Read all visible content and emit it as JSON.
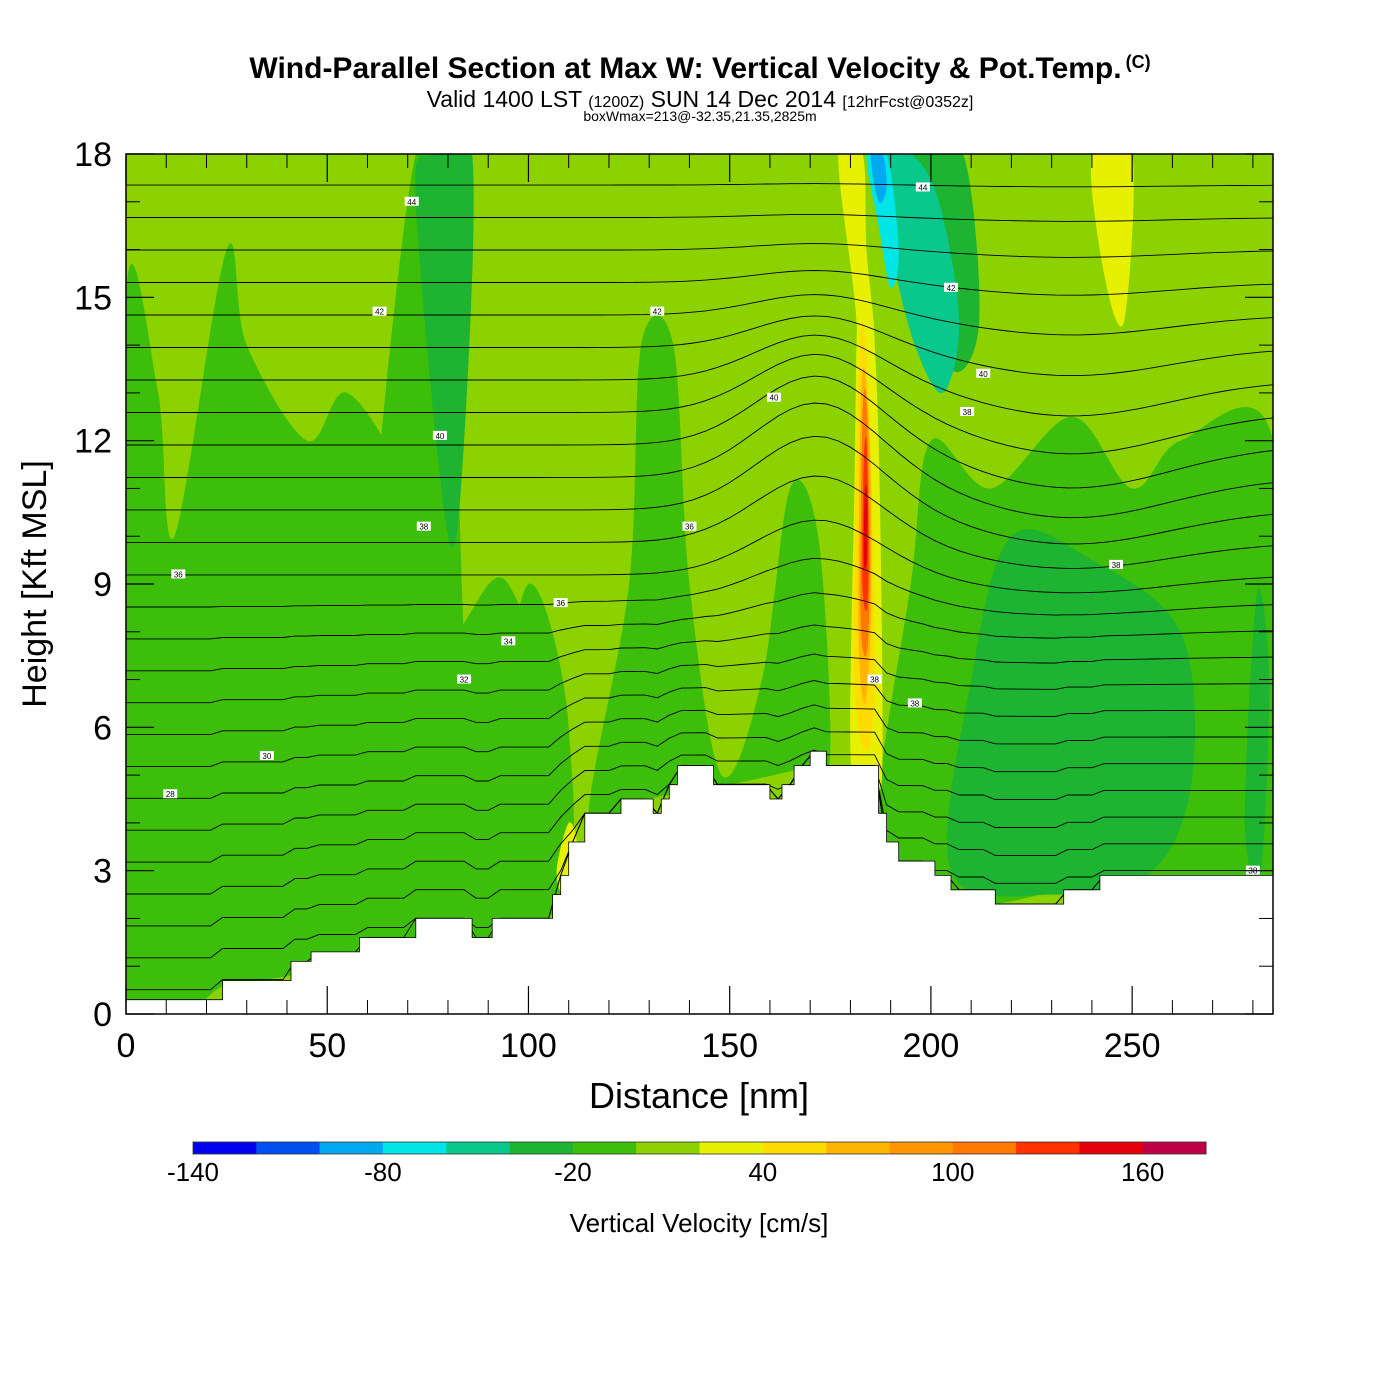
{
  "header": {
    "title": "Wind-Parallel Section at Max W: Vertical Velocity & Pot.Temp.",
    "copyright": "(C)",
    "subtitle_main": "Valid 1400 LST",
    "subtitle_utc": "(1200Z)",
    "subtitle_date": "SUN 14 Dec 2014",
    "subtitle_fcst": "[12hrFcst@0352z]",
    "box_info": "boxWmax=213@-32.35,21.35,2825m"
  },
  "chart_data": {
    "type": "heatmap",
    "xlabel": "Distance [nm]",
    "ylabel": "Height [Kft MSL]",
    "xlim": [
      0,
      285
    ],
    "ylim": [
      0,
      18
    ],
    "x_ticks": [
      "0",
      "50",
      "100",
      "150",
      "200",
      "250"
    ],
    "x_tick_values": [
      0,
      50,
      100,
      150,
      200,
      250
    ],
    "y_ticks": [
      "0",
      "3",
      "6",
      "9",
      "12",
      "15",
      "18"
    ],
    "y_tick_values": [
      0,
      3,
      6,
      9,
      12,
      15,
      18
    ],
    "background_value_color": "#8cd200",
    "regions": [
      {
        "level": "-20..0",
        "color": "#3cbe0a",
        "points": [
          [
            0,
            0.3
          ],
          [
            0,
            15
          ],
          [
            8,
            13
          ],
          [
            12,
            10
          ],
          [
            25,
            16
          ],
          [
            30,
            14
          ],
          [
            45,
            12
          ],
          [
            55,
            13
          ],
          [
            70,
            11
          ],
          [
            80,
            8
          ],
          [
            95,
            9
          ],
          [
            110,
            4
          ],
          [
            75,
            2
          ],
          [
            50,
            1
          ],
          [
            25,
            0.6
          ]
        ]
      },
      {
        "level": "-20..0",
        "color": "#3cbe0a",
        "points": [
          [
            55,
            1.5
          ],
          [
            60,
            9
          ],
          [
            72,
            18
          ],
          [
            80,
            16
          ],
          [
            85,
            6
          ],
          [
            90,
            5
          ],
          [
            100,
            9
          ],
          [
            110,
            6
          ],
          [
            105,
            2
          ]
        ]
      },
      {
        "level": "-20..0",
        "color": "#3cbe0a",
        "points": [
          [
            115,
            4
          ],
          [
            125,
            9
          ],
          [
            128,
            14
          ],
          [
            136,
            14
          ],
          [
            140,
            9
          ],
          [
            148,
            5
          ],
          [
            158,
            7
          ],
          [
            165,
            11
          ],
          [
            172,
            10
          ],
          [
            175,
            5.5
          ],
          [
            170,
            5.2
          ],
          [
            150,
            4.8
          ],
          [
            130,
            4.5
          ]
        ]
      },
      {
        "level": "-20..0",
        "color": "#3cbe0a",
        "points": [
          [
            187,
            4.5
          ],
          [
            195,
            9
          ],
          [
            200,
            12
          ],
          [
            215,
            11
          ],
          [
            235,
            12.5
          ],
          [
            250,
            11
          ],
          [
            262,
            12
          ],
          [
            285,
            12
          ],
          [
            285,
            3
          ],
          [
            240,
            2.7
          ],
          [
            215,
            2.3
          ],
          [
            200,
            2.5
          ],
          [
            192,
            3.2
          ]
        ]
      },
      {
        "level": "-40..-20",
        "color": "#1eb432",
        "points": [
          [
            205,
            3
          ],
          [
            210,
            7
          ],
          [
            220,
            10
          ],
          [
            240,
            9.5
          ],
          [
            262,
            8
          ],
          [
            265,
            5
          ],
          [
            255,
            3
          ],
          [
            230,
            2.5
          ]
        ]
      },
      {
        "level": "-40..-20",
        "color": "#1eb432",
        "points": [
          [
            188,
            17.5
          ],
          [
            196,
            16
          ],
          [
            205,
            13.5
          ],
          [
            212,
            14.5
          ],
          [
            208,
            18
          ],
          [
            196,
            18
          ]
        ]
      },
      {
        "level": "-40..-20",
        "color": "#1eb432",
        "points": [
          [
            72,
            17
          ],
          [
            80,
            10
          ],
          [
            84,
            12
          ],
          [
            86,
            18
          ],
          [
            76,
            18
          ]
        ]
      },
      {
        "level": "-40..-20",
        "color": "#1eb432",
        "points": [
          [
            278,
            4
          ],
          [
            281,
            8.8
          ],
          [
            284,
            7
          ],
          [
            282,
            3
          ]
        ]
      },
      {
        "level": "-60..-40",
        "color": "#0ac88c",
        "points": [
          [
            186,
            18
          ],
          [
            190,
            16
          ],
          [
            196,
            14
          ],
          [
            203,
            13
          ],
          [
            207,
            14.5
          ],
          [
            202,
            17
          ],
          [
            195,
            18
          ]
        ]
      },
      {
        "level": "-80..-60",
        "color": "#00e6e6",
        "points": [
          [
            184,
            18
          ],
          [
            187,
            16.5
          ],
          [
            190,
            15.2
          ],
          [
            192,
            16
          ],
          [
            189,
            18
          ]
        ]
      },
      {
        "level": "-100..-80",
        "color": "#00aaf0",
        "points": [
          [
            185,
            18
          ],
          [
            187,
            17
          ],
          [
            189,
            17.3
          ],
          [
            188,
            18
          ]
        ]
      },
      {
        "level": "20..40",
        "color": "#e6f000",
        "points": [
          [
            177,
            18
          ],
          [
            181,
            15
          ],
          [
            183,
            13
          ],
          [
            186,
            14
          ],
          [
            184,
            16
          ],
          [
            183,
            18
          ]
        ]
      },
      {
        "level": "20..40",
        "color": "#e6f000",
        "points": [
          [
            180,
            5.5
          ],
          [
            181,
            11
          ],
          [
            182,
            15
          ],
          [
            185,
            15
          ],
          [
            187,
            12
          ],
          [
            188,
            6
          ],
          [
            187,
            4.6
          ],
          [
            183,
            5
          ]
        ]
      },
      {
        "level": "20..40",
        "color": "#e6f000",
        "points": [
          [
            240,
            18
          ],
          [
            243,
            15.5
          ],
          [
            248,
            14.5
          ],
          [
            250,
            18
          ]
        ]
      },
      {
        "level": "20..40",
        "color": "#e6f000",
        "points": [
          [
            107,
            3
          ],
          [
            110,
            4
          ],
          [
            112,
            3.5
          ],
          [
            109,
            2.5
          ]
        ]
      },
      {
        "level": "40..60",
        "color": "#ffdc00",
        "points": [
          [
            181,
            7
          ],
          [
            181.5,
            12
          ],
          [
            183,
            14.5
          ],
          [
            185,
            12
          ],
          [
            186,
            7
          ],
          [
            184,
            5.5
          ]
        ]
      },
      {
        "level": "60..80",
        "color": "#ffb400",
        "points": [
          [
            182,
            8
          ],
          [
            182.5,
            12.5
          ],
          [
            183.5,
            13.5
          ],
          [
            185,
            11.5
          ],
          [
            185,
            8
          ],
          [
            183.5,
            6.5
          ]
        ]
      },
      {
        "level": "100..120",
        "color": "#ff7800",
        "points": [
          [
            182.5,
            8.5
          ],
          [
            183,
            12.5
          ],
          [
            184,
            12.8
          ],
          [
            184.8,
            10
          ],
          [
            184.5,
            8
          ],
          [
            183.5,
            7.5
          ]
        ]
      },
      {
        "level": "120..140",
        "color": "#ff3200",
        "points": [
          [
            183,
            9
          ],
          [
            183.3,
            11.5
          ],
          [
            184,
            12
          ],
          [
            184.5,
            10
          ],
          [
            184.2,
            8.5
          ]
        ]
      },
      {
        "level": "140..160",
        "color": "#e6000a",
        "points": [
          [
            183.3,
            9.5
          ],
          [
            183.6,
            11
          ],
          [
            184.2,
            10.8
          ],
          [
            184.1,
            9.5
          ]
        ]
      }
    ],
    "terrain": [
      [
        0,
        0.3
      ],
      [
        24,
        0.3
      ],
      [
        24,
        0.7
      ],
      [
        41,
        0.7
      ],
      [
        41,
        1.1
      ],
      [
        46,
        1.1
      ],
      [
        46,
        1.3
      ],
      [
        58,
        1.3
      ],
      [
        58,
        1.6
      ],
      [
        72,
        1.6
      ],
      [
        72,
        2
      ],
      [
        86,
        2
      ],
      [
        86,
        1.6
      ],
      [
        91,
        1.6
      ],
      [
        91,
        2
      ],
      [
        106,
        2
      ],
      [
        106,
        2.5
      ],
      [
        108,
        2.5
      ],
      [
        108,
        2.9
      ],
      [
        110,
        2.9
      ],
      [
        110,
        3.6
      ],
      [
        114,
        3.6
      ],
      [
        114,
        4.2
      ],
      [
        123,
        4.2
      ],
      [
        123,
        4.5
      ],
      [
        131,
        4.5
      ],
      [
        131,
        4.2
      ],
      [
        133,
        4.2
      ],
      [
        133,
        4.5
      ],
      [
        135,
        4.5
      ],
      [
        135,
        4.8
      ],
      [
        137,
        4.8
      ],
      [
        137,
        5.2
      ],
      [
        146,
        5.2
      ],
      [
        146,
        4.8
      ],
      [
        160,
        4.8
      ],
      [
        160,
        4.5
      ],
      [
        163,
        4.5
      ],
      [
        163,
        4.8
      ],
      [
        166,
        4.8
      ],
      [
        166,
        5.2
      ],
      [
        170,
        5.2
      ],
      [
        170,
        5.5
      ],
      [
        174,
        5.5
      ],
      [
        174,
        5.2
      ],
      [
        187,
        5.2
      ],
      [
        187,
        4.2
      ],
      [
        189,
        4.2
      ],
      [
        189,
        3.6
      ],
      [
        192,
        3.6
      ],
      [
        192,
        3.2
      ],
      [
        201,
        3.2
      ],
      [
        201,
        2.9
      ],
      [
        205,
        2.9
      ],
      [
        205,
        2.6
      ],
      [
        216,
        2.6
      ],
      [
        216,
        2.3
      ],
      [
        233,
        2.3
      ],
      [
        233,
        2.6
      ],
      [
        242,
        2.6
      ],
      [
        242,
        2.9
      ],
      [
        285,
        2.9
      ]
    ],
    "theta_labels": [
      {
        "text": "44",
        "x": 71,
        "y": 17.0
      },
      {
        "text": "42",
        "x": 63,
        "y": 14.7
      },
      {
        "text": "42",
        "x": 132,
        "y": 14.7
      },
      {
        "text": "40",
        "x": 78,
        "y": 12.1
      },
      {
        "text": "40",
        "x": 161,
        "y": 12.9
      },
      {
        "text": "38",
        "x": 74,
        "y": 10.2
      },
      {
        "text": "36",
        "x": 140,
        "y": 10.2
      },
      {
        "text": "36",
        "x": 13,
        "y": 9.2
      },
      {
        "text": "36",
        "x": 108,
        "y": 8.6
      },
      {
        "text": "34",
        "x": 95,
        "y": 7.8
      },
      {
        "text": "32",
        "x": 84,
        "y": 7.0
      },
      {
        "text": "30",
        "x": 35,
        "y": 5.4
      },
      {
        "text": "28",
        "x": 11,
        "y": 4.6
      },
      {
        "text": "44",
        "x": 198,
        "y": 17.3
      },
      {
        "text": "42",
        "x": 205,
        "y": 15.2
      },
      {
        "text": "40",
        "x": 213,
        "y": 13.4
      },
      {
        "text": "38",
        "x": 209,
        "y": 12.6
      },
      {
        "text": "38",
        "x": 246,
        "y": 9.4
      },
      {
        "text": "38",
        "x": 186,
        "y": 7.0
      },
      {
        "text": "38",
        "x": 196,
        "y": 6.5
      },
      {
        "text": "38",
        "x": 280,
        "y": 3.0
      }
    ],
    "colorbar": {
      "label": "Vertical Velocity [cm/s]",
      "min": -140,
      "max": 180,
      "colors": [
        "#0000f0",
        "#0050f0",
        "#00aaf0",
        "#00e6e6",
        "#0ac88c",
        "#1eb432",
        "#3cbe0a",
        "#8cd200",
        "#e6f000",
        "#ffdc00",
        "#ffb400",
        "#ff9600",
        "#ff7800",
        "#ff3200",
        "#e6000a",
        "#be0046"
      ],
      "tick_labels": [
        "-140",
        "-80",
        "-20",
        "40",
        "100",
        "160"
      ],
      "tick_values": [
        -140,
        -80,
        -20,
        40,
        100,
        160
      ]
    }
  }
}
